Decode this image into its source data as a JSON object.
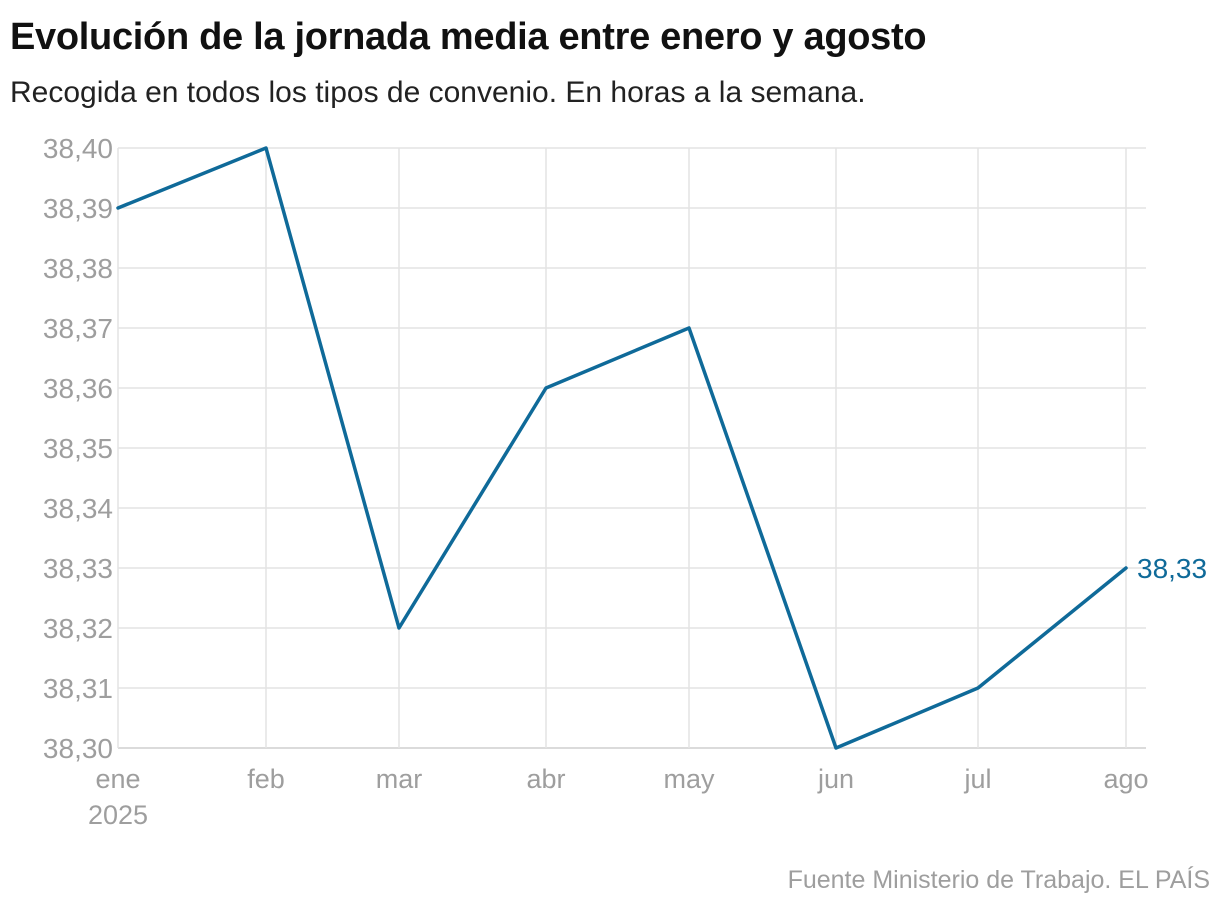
{
  "chart_data": {
    "type": "line",
    "title": "Evolución de la jornada media entre enero y agosto",
    "subtitle": "Recogida en todos los tipos de convenio. En horas a la semana.",
    "categories": [
      "ene",
      "feb",
      "mar",
      "abr",
      "may",
      "jun",
      "jul",
      "ago"
    ],
    "first_category_year": "2025",
    "series": [
      {
        "name": "Jornada media",
        "color": "#0f6a99",
        "values": [
          38.39,
          38.4,
          38.32,
          38.36,
          38.37,
          38.3,
          38.31,
          38.33
        ]
      }
    ],
    "end_label": "38,33",
    "y_ticks": [
      "38,30",
      "38,31",
      "38,32",
      "38,33",
      "38,34",
      "38,35",
      "38,36",
      "38,37",
      "38,38",
      "38,39",
      "38,40"
    ],
    "ylim": [
      38.3,
      38.4
    ],
    "grid": true,
    "xlabel": "",
    "ylabel": "",
    "source": "Fuente Ministerio de Trabajo. EL PAÍS"
  }
}
